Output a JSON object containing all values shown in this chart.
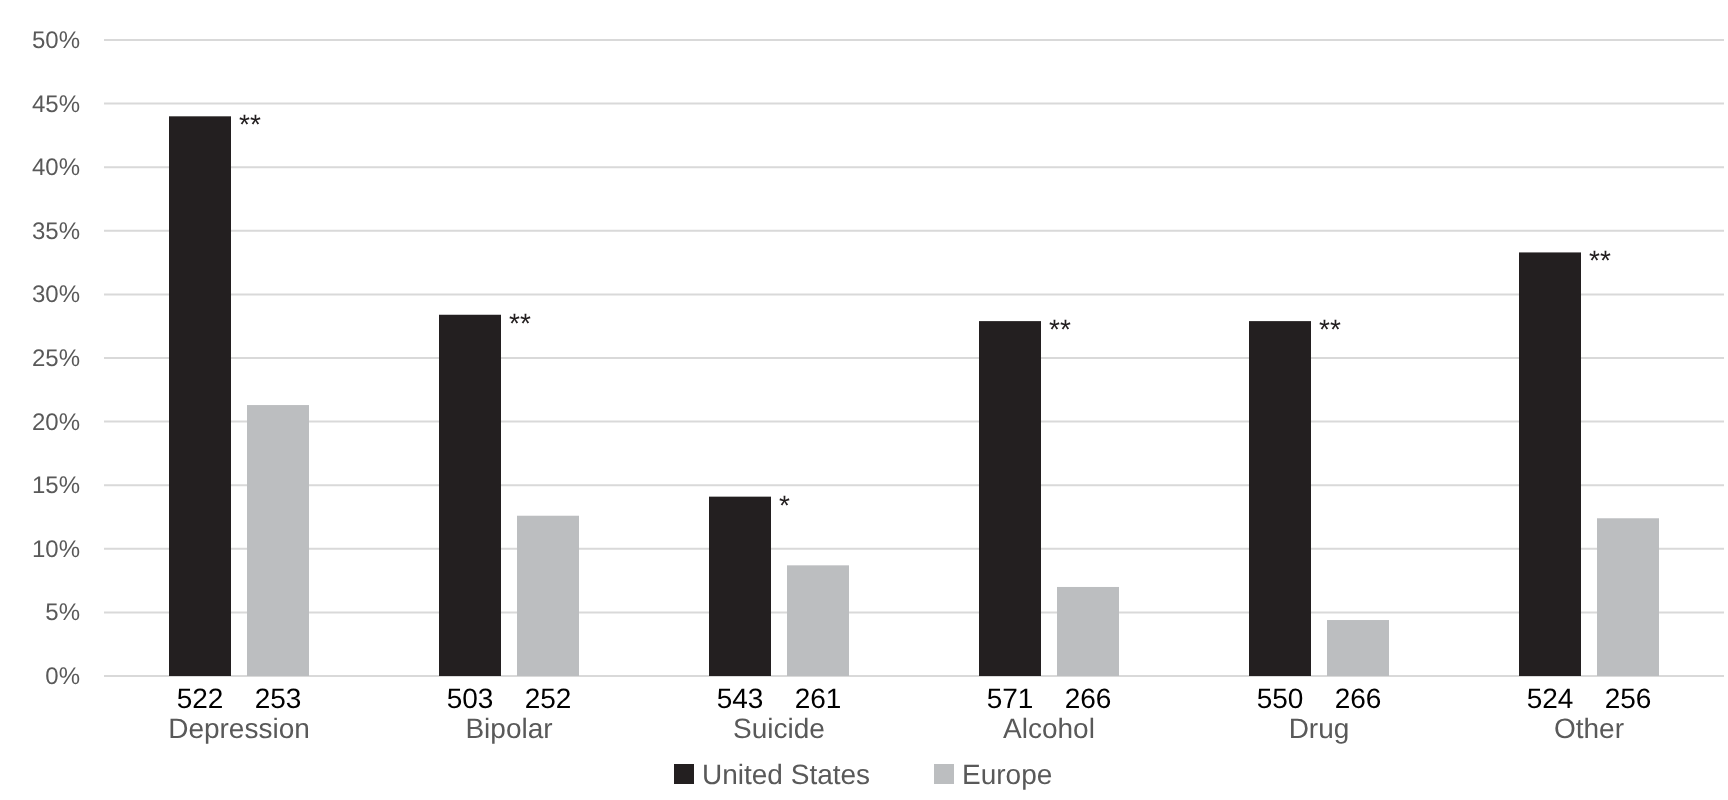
{
  "chart_data": {
    "type": "bar",
    "categories": [
      "Depression",
      "Bipolar",
      "Suicide",
      "Alcohol",
      "Drug",
      "Other"
    ],
    "series": [
      {
        "name": "United States",
        "color": "#231f20",
        "values": [
          44,
          28.4,
          14.1,
          27.9,
          27.9,
          33.3
        ]
      },
      {
        "name": "Europe",
        "color": "#bcbec0",
        "values": [
          21.3,
          12.6,
          8.7,
          7.0,
          4.4,
          12.4
        ]
      }
    ],
    "ylim": [
      0,
      50
    ],
    "yticks": [
      {
        "value": 0,
        "label": "0%"
      },
      {
        "value": 5,
        "label": "5%"
      },
      {
        "value": 10,
        "label": "10%"
      },
      {
        "value": 15,
        "label": "15%"
      },
      {
        "value": 20,
        "label": "20%"
      },
      {
        "value": 25,
        "label": "25%"
      },
      {
        "value": 30,
        "label": "30%"
      },
      {
        "value": 35,
        "label": "35%"
      },
      {
        "value": 40,
        "label": "40%"
      },
      {
        "value": 45,
        "label": "45%"
      },
      {
        "value": 50,
        "label": "50%"
      }
    ],
    "grid": "y",
    "legend": "bottom",
    "annotations": [
      {
        "text": "**",
        "x": "Depression",
        "y": 44
      },
      {
        "text": "**",
        "x": "Bipolar",
        "y": 28.4
      },
      {
        "text": "*",
        "x": "Suicide",
        "y": 14.1
      },
      {
        "text": "**",
        "x": "Alcohol",
        "y": 27.9
      },
      {
        "text": "**",
        "x": "Drug",
        "y": 27.9
      },
      {
        "text": "**",
        "x": "Other",
        "y": 33.3
      },
      {
        "text": "522",
        "x": "Depression",
        "y": 0
      },
      {
        "text": "253",
        "x": "Depression",
        "y": 0
      },
      {
        "text": "503",
        "x": "Bipolar",
        "y": 0
      },
      {
        "text": "252",
        "x": "Bipolar",
        "y": 0
      },
      {
        "text": "543",
        "x": "Suicide",
        "y": 0
      },
      {
        "text": "261",
        "x": "Suicide",
        "y": 0
      },
      {
        "text": "571",
        "x": "Alcohol",
        "y": 0
      },
      {
        "text": "266",
        "x": "Alcohol",
        "y": 0
      },
      {
        "text": "550",
        "x": "Drug",
        "y": 0
      },
      {
        "text": "266",
        "x": "Drug",
        "y": 0
      },
      {
        "text": "524",
        "x": "Other",
        "y": 0
      },
      {
        "text": "256",
        "x": "Other",
        "y": 0
      }
    ]
  }
}
